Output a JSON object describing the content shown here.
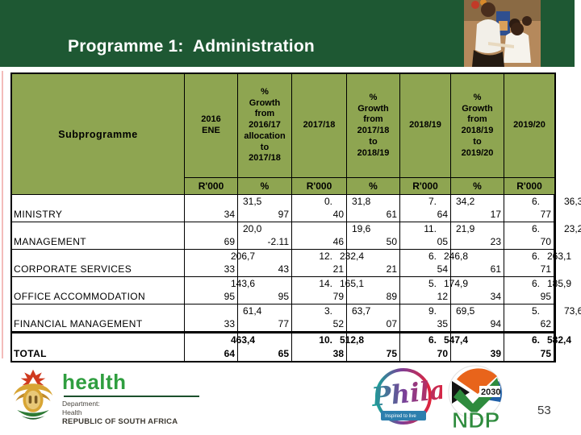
{
  "slide": {
    "title": "Programme 1:  Administration",
    "page_number": "53",
    "colors": {
      "banner_green": "#1e5833",
      "table_header_olive": "#8ea551",
      "title_text": "#ffffff",
      "accent_pink": "#f3bcba"
    }
  },
  "table": {
    "header": {
      "subprogramme": "Subprogramme",
      "columns": [
        {
          "label": "2016\nENE",
          "unit": "R'000"
        },
        {
          "label": "%\nGrowth\nfrom\n2016/17\nallocation\nto\n2017/18",
          "unit": "%"
        },
        {
          "label": "2017/18",
          "unit": "R'000"
        },
        {
          "label": "%\nGrowth\nfrom\n2017/18\nto\n2018/19",
          "unit": "%"
        },
        {
          "label": "2018/19",
          "unit": "R'000"
        },
        {
          "label": "%\nGrowth\nfrom\n2018/19\nto\n2019/20",
          "unit": "%"
        },
        {
          "label": "2019/20",
          "unit": "R'000"
        }
      ]
    },
    "rows": [
      {
        "label": "MINISTRY",
        "bold": false,
        "cells": [
          {
            "l2": "34"
          },
          {
            "l1": "31,5",
            "p": "l",
            "l2": "97"
          },
          {
            "l1": "0.",
            "p": "r",
            "l2": "40"
          },
          {
            "l1": "31,8",
            "p": "l",
            "l2": "61"
          },
          {
            "l1": "7.",
            "p": "r",
            "l2": "64"
          },
          {
            "l1": "34,2",
            "p": "l",
            "l2": "17"
          },
          {
            "l1": "6.",
            "p": "r",
            "l2": "77"
          }
        ],
        "overflow": "36,3",
        "overflow_straddle": false
      },
      {
        "label": "MANAGEMENT",
        "bold": false,
        "cells": [
          {
            "l2": "69"
          },
          {
            "l1": "20,0",
            "p": "l",
            "l2": "-2.11"
          },
          {
            "l2": "46"
          },
          {
            "l1": "19,6",
            "p": "l",
            "l2": "50"
          },
          {
            "l1": "11.",
            "p": "r",
            "l2": "05"
          },
          {
            "l1": "21,9",
            "p": "l",
            "l2": "23"
          },
          {
            "l1": "6.",
            "p": "r",
            "l2": "70"
          }
        ],
        "overflow": "23,2",
        "overflow_straddle": false
      },
      {
        "label": "CORPORATE SERVICES",
        "bold": false,
        "cells": [
          {
            "l2": "33"
          },
          {
            "l1": "206,7",
            "p": "ls",
            "l2": "43"
          },
          {
            "l1": "12.",
            "p": "r",
            "l2": "21"
          },
          {
            "l1": "232,4",
            "p": "ls",
            "l2": "21"
          },
          {
            "l1": "6.",
            "p": "r",
            "l2": "54"
          },
          {
            "l1": "246,8",
            "p": "ls",
            "l2": "61"
          },
          {
            "l1": "6.",
            "p": "r",
            "l2": "71"
          }
        ],
        "overflow": "263,1",
        "overflow_straddle": true
      },
      {
        "label": "OFFICE ACCOMMODATION",
        "bold": false,
        "cells": [
          {
            "l2": "95"
          },
          {
            "l1": "143,6",
            "p": "ls",
            "l2": "95"
          },
          {
            "l1": "14.",
            "p": "r",
            "l2": "79"
          },
          {
            "l1": "165,1",
            "p": "ls",
            "l2": "89"
          },
          {
            "l1": "5.",
            "p": "r",
            "l2": "12"
          },
          {
            "l1": "174,9",
            "p": "ls",
            "l2": "34"
          },
          {
            "l1": "6.",
            "p": "r",
            "l2": "95"
          }
        ],
        "overflow": "185,9",
        "overflow_straddle": true
      },
      {
        "label": "FINANCIAL MANAGEMENT",
        "bold": false,
        "cells": [
          {
            "l2": "33"
          },
          {
            "l1": "61,4",
            "p": "l",
            "l2": "77"
          },
          {
            "l1": "3.",
            "p": "r",
            "l2": "52"
          },
          {
            "l1": "63,7",
            "p": "l",
            "l2": "07"
          },
          {
            "l1": "9.",
            "p": "r",
            "l2": "35"
          },
          {
            "l1": "69,5",
            "p": "l",
            "l2": "94"
          },
          {
            "l1": "5.",
            "p": "r",
            "l2": "62"
          }
        ],
        "overflow": "73,6",
        "overflow_straddle": false
      },
      {
        "label": "TOTAL",
        "bold": true,
        "cells": [
          {
            "l2": "64"
          },
          {
            "l1": "463,4",
            "p": "ls",
            "l2": "65"
          },
          {
            "l1": "10.",
            "p": "r",
            "l2": "38"
          },
          {
            "l1": "512,8",
            "p": "ls",
            "l2": "75"
          },
          {
            "l1": "6.",
            "p": "r",
            "l2": "70"
          },
          {
            "l1": "547,4",
            "p": "ls",
            "l2": "39"
          },
          {
            "l1": "6.",
            "p": "r",
            "l2": "75"
          }
        ],
        "overflow": "582,4",
        "overflow_straddle": true
      }
    ]
  },
  "footer": {
    "health": {
      "wordmark": "health",
      "line1": "Department:",
      "line2": "Health",
      "line3": "REPUBLIC OF SOUTH AFRICA"
    },
    "phila": {
      "name": "Phila",
      "tagline": "Inspired to live"
    },
    "ndp": {
      "name": "NDP",
      "year": "2030"
    }
  }
}
